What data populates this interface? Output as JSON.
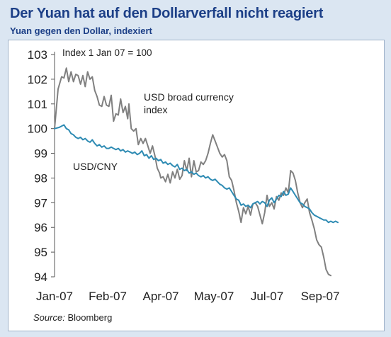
{
  "header": {
    "title": "Der Yuan hat auf den Dollarverfall nicht reagiert",
    "subtitle": "Yuan gegen den Dollar, indexiert"
  },
  "source": {
    "label": "Source:",
    "text": "Bloomberg"
  },
  "colors": {
    "title": "#1c3f87",
    "background": "#dbe6f2",
    "usd_broad": "#808080",
    "usd_cny": "#2e8bb3"
  },
  "chart_data": {
    "type": "line",
    "title": "",
    "xlabel": "",
    "ylabel": "",
    "ylim": [
      94,
      103
    ],
    "yticks": [
      94,
      95,
      96,
      97,
      98,
      99,
      100,
      101,
      102,
      103
    ],
    "xlim": [
      0,
      270
    ],
    "xticks": [
      {
        "label": "Jan-07",
        "x": 0
      },
      {
        "label": "Feb-07",
        "x": 45
      },
      {
        "label": "Apr-07",
        "x": 90
      },
      {
        "label": "May-07",
        "x": 135
      },
      {
        "label": "Jul-07",
        "x": 180
      },
      {
        "label": "Sep-07",
        "x": 225
      }
    ],
    "grid": false,
    "annotations": [
      {
        "id": "index-note",
        "text": "Index 1 Jan 07 = 100"
      },
      {
        "id": "usd-broad-label-1",
        "text": "USD broad currency"
      },
      {
        "id": "usd-broad-label-2",
        "text": "index"
      },
      {
        "id": "usd-cny-label",
        "text": "USD/CNY"
      }
    ],
    "series": [
      {
        "key": "usd_broad",
        "color": "#808080",
        "points": [
          [
            0,
            100
          ],
          [
            3,
            101.6
          ],
          [
            6,
            102.1
          ],
          [
            8,
            102.05
          ],
          [
            10,
            102.45
          ],
          [
            12,
            101.9
          ],
          [
            14,
            102.3
          ],
          [
            16,
            101.9
          ],
          [
            18,
            102.2
          ],
          [
            20,
            102.15
          ],
          [
            22,
            101.8
          ],
          [
            24,
            102.15
          ],
          [
            26,
            101.7
          ],
          [
            28,
            102.3
          ],
          [
            30,
            102.0
          ],
          [
            32,
            102.1
          ],
          [
            34,
            101.55
          ],
          [
            36,
            101.3
          ],
          [
            38,
            100.95
          ],
          [
            40,
            100.9
          ],
          [
            42,
            101.3
          ],
          [
            44,
            100.95
          ],
          [
            46,
            100.9
          ],
          [
            48,
            101.35
          ],
          [
            50,
            100.3
          ],
          [
            52,
            100.6
          ],
          [
            54,
            100.55
          ],
          [
            56,
            101.2
          ],
          [
            58,
            100.65
          ],
          [
            60,
            100.9
          ],
          [
            62,
            100.4
          ],
          [
            63,
            101.0
          ],
          [
            65,
            100.0
          ],
          [
            67,
            99.9
          ],
          [
            69,
            100.0
          ],
          [
            71,
            99.35
          ],
          [
            73,
            99.6
          ],
          [
            75,
            99.4
          ],
          [
            77,
            99.6
          ],
          [
            79,
            99.3
          ],
          [
            81,
            99.0
          ],
          [
            83,
            99.3
          ],
          [
            85,
            98.9
          ],
          [
            87,
            98.4
          ],
          [
            89,
            98.2
          ],
          [
            90,
            98.0
          ],
          [
            92,
            98.05
          ],
          [
            94,
            97.85
          ],
          [
            96,
            98.15
          ],
          [
            98,
            97.8
          ],
          [
            100,
            98.25
          ],
          [
            102,
            98.0
          ],
          [
            104,
            98.35
          ],
          [
            106,
            97.95
          ],
          [
            108,
            98.1
          ],
          [
            110,
            98.7
          ],
          [
            112,
            98.3
          ],
          [
            114,
            98.8
          ],
          [
            116,
            98.05
          ],
          [
            118,
            98.7
          ],
          [
            120,
            98.25
          ],
          [
            122,
            98.3
          ],
          [
            124,
            98.65
          ],
          [
            126,
            98.55
          ],
          [
            128,
            98.7
          ],
          [
            130,
            99.0
          ],
          [
            132,
            99.4
          ],
          [
            134,
            99.75
          ],
          [
            136,
            99.5
          ],
          [
            138,
            99.25
          ],
          [
            140,
            99.0
          ],
          [
            142,
            98.85
          ],
          [
            144,
            98.95
          ],
          [
            146,
            98.7
          ],
          [
            148,
            98.05
          ],
          [
            150,
            97.9
          ],
          [
            152,
            97.5
          ],
          [
            154,
            97.0
          ],
          [
            156,
            96.65
          ],
          [
            158,
            96.2
          ],
          [
            160,
            96.8
          ],
          [
            162,
            96.55
          ],
          [
            164,
            96.85
          ],
          [
            166,
            96.5
          ],
          [
            168,
            96.95
          ],
          [
            170,
            97.0
          ],
          [
            172,
            96.85
          ],
          [
            174,
            96.5
          ],
          [
            176,
            96.15
          ],
          [
            178,
            96.6
          ],
          [
            180,
            97.3
          ],
          [
            182,
            96.85
          ],
          [
            184,
            97.0
          ],
          [
            186,
            96.75
          ],
          [
            188,
            97.25
          ],
          [
            190,
            97.1
          ],
          [
            192,
            97.4
          ],
          [
            194,
            97.3
          ],
          [
            196,
            97.6
          ],
          [
            198,
            97.4
          ],
          [
            200,
            98.3
          ],
          [
            202,
            98.2
          ],
          [
            204,
            97.9
          ],
          [
            206,
            97.4
          ],
          [
            208,
            97.0
          ],
          [
            210,
            96.8
          ],
          [
            212,
            97.0
          ],
          [
            214,
            97.15
          ],
          [
            216,
            96.6
          ],
          [
            218,
            96.3
          ],
          [
            220,
            95.95
          ],
          [
            222,
            95.5
          ],
          [
            224,
            95.3
          ],
          [
            226,
            95.2
          ],
          [
            228,
            94.8
          ],
          [
            230,
            94.3
          ],
          [
            232,
            94.1
          ],
          [
            234,
            94.05
          ]
        ]
      },
      {
        "key": "usd_cny",
        "color": "#2e8bb3",
        "points": [
          [
            0,
            100
          ],
          [
            4,
            100.05
          ],
          [
            8,
            100.15
          ],
          [
            10,
            100.0
          ],
          [
            12,
            99.95
          ],
          [
            14,
            99.8
          ],
          [
            16,
            99.75
          ],
          [
            18,
            99.65
          ],
          [
            20,
            99.6
          ],
          [
            22,
            99.65
          ],
          [
            24,
            99.55
          ],
          [
            26,
            99.6
          ],
          [
            28,
            99.5
          ],
          [
            30,
            99.45
          ],
          [
            32,
            99.55
          ],
          [
            34,
            99.4
          ],
          [
            36,
            99.3
          ],
          [
            38,
            99.35
          ],
          [
            40,
            99.25
          ],
          [
            42,
            99.3
          ],
          [
            44,
            99.2
          ],
          [
            46,
            99.2
          ],
          [
            48,
            99.25
          ],
          [
            50,
            99.2
          ],
          [
            52,
            99.15
          ],
          [
            54,
            99.2
          ],
          [
            56,
            99.1
          ],
          [
            58,
            99.15
          ],
          [
            60,
            99.05
          ],
          [
            62,
            99.1
          ],
          [
            64,
            99.05
          ],
          [
            66,
            99.0
          ],
          [
            68,
            99.05
          ],
          [
            70,
            98.95
          ],
          [
            72,
            99.0
          ],
          [
            74,
            99.1
          ],
          [
            76,
            98.9
          ],
          [
            78,
            98.95
          ],
          [
            80,
            98.8
          ],
          [
            82,
            98.9
          ],
          [
            84,
            98.75
          ],
          [
            86,
            98.8
          ],
          [
            88,
            98.7
          ],
          [
            90,
            98.75
          ],
          [
            92,
            98.6
          ],
          [
            94,
            98.65
          ],
          [
            96,
            98.55
          ],
          [
            98,
            98.6
          ],
          [
            100,
            98.5
          ],
          [
            102,
            98.45
          ],
          [
            104,
            98.55
          ],
          [
            106,
            98.35
          ],
          [
            108,
            98.4
          ],
          [
            110,
            98.3
          ],
          [
            112,
            98.35
          ],
          [
            114,
            98.2
          ],
          [
            116,
            98.25
          ],
          [
            118,
            98.15
          ],
          [
            120,
            98.2
          ],
          [
            122,
            98.1
          ],
          [
            124,
            98.05
          ],
          [
            126,
            98.1
          ],
          [
            128,
            98.0
          ],
          [
            130,
            98.05
          ],
          [
            132,
            97.95
          ],
          [
            134,
            97.9
          ],
          [
            136,
            97.95
          ],
          [
            138,
            97.85
          ],
          [
            140,
            97.75
          ],
          [
            142,
            97.7
          ],
          [
            144,
            97.6
          ],
          [
            146,
            97.55
          ],
          [
            148,
            97.6
          ],
          [
            150,
            97.45
          ],
          [
            152,
            97.3
          ],
          [
            154,
            97.15
          ],
          [
            156,
            97.1
          ],
          [
            158,
            96.9
          ],
          [
            160,
            96.95
          ],
          [
            162,
            96.85
          ],
          [
            164,
            96.9
          ],
          [
            166,
            96.8
          ],
          [
            168,
            96.95
          ],
          [
            170,
            97.0
          ],
          [
            172,
            97.05
          ],
          [
            174,
            96.95
          ],
          [
            176,
            97.05
          ],
          [
            178,
            97.0
          ],
          [
            180,
            96.85
          ],
          [
            182,
            97.1
          ],
          [
            184,
            97.2
          ],
          [
            186,
            97.0
          ],
          [
            188,
            97.15
          ],
          [
            190,
            97.3
          ],
          [
            192,
            97.25
          ],
          [
            194,
            97.45
          ],
          [
            196,
            97.3
          ],
          [
            198,
            97.35
          ],
          [
            200,
            97.6
          ],
          [
            202,
            97.45
          ],
          [
            204,
            97.3
          ],
          [
            206,
            97.15
          ],
          [
            208,
            97.0
          ],
          [
            210,
            96.95
          ],
          [
            212,
            96.85
          ],
          [
            214,
            96.8
          ],
          [
            216,
            96.75
          ],
          [
            218,
            96.6
          ],
          [
            220,
            96.5
          ],
          [
            222,
            96.45
          ],
          [
            224,
            96.4
          ],
          [
            226,
            96.35
          ],
          [
            228,
            96.3
          ],
          [
            230,
            96.3
          ],
          [
            232,
            96.2
          ],
          [
            234,
            96.25
          ],
          [
            236,
            96.2
          ],
          [
            238,
            96.25
          ],
          [
            240,
            96.2
          ]
        ]
      }
    ]
  }
}
